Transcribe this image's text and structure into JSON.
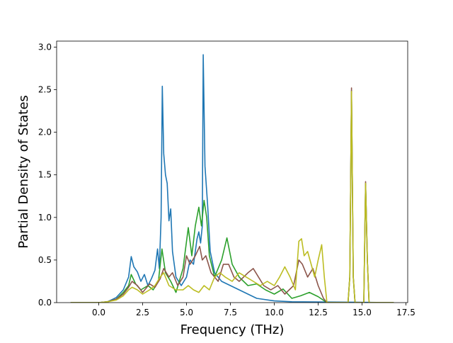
{
  "chart_data": {
    "type": "line",
    "title": "",
    "xlabel": "Frequency (THz)",
    "ylabel": "Partial Density of States",
    "xlim": [
      -2.4,
      17.6
    ],
    "ylim": [
      0.0,
      3.07
    ],
    "xticks": [
      0.0,
      2.5,
      5.0,
      7.5,
      10.0,
      12.5,
      15.0,
      17.5
    ],
    "xtick_labels": [
      "0.0",
      "2.5",
      "5.0",
      "7.5",
      "10.0",
      "12.5",
      "15.0",
      "17.5"
    ],
    "yticks": [
      0.0,
      0.5,
      1.0,
      1.5,
      2.0,
      2.5,
      3.0
    ],
    "ytick_labels": [
      "0.0",
      "0.5",
      "1.0",
      "1.5",
      "2.0",
      "2.5",
      "3.0"
    ],
    "grid": false,
    "legend": "none",
    "series": [
      {
        "color": "#1f77b4",
        "points": [
          [
            -1.6,
            0
          ],
          [
            0,
            0
          ],
          [
            0.5,
            0.01
          ],
          [
            1.0,
            0.06
          ],
          [
            1.4,
            0.15
          ],
          [
            1.7,
            0.3
          ],
          [
            1.85,
            0.54
          ],
          [
            2.0,
            0.42
          ],
          [
            2.2,
            0.36
          ],
          [
            2.4,
            0.25
          ],
          [
            2.6,
            0.33
          ],
          [
            2.8,
            0.2
          ],
          [
            3.0,
            0.28
          ],
          [
            3.2,
            0.38
          ],
          [
            3.35,
            0.63
          ],
          [
            3.45,
            0.4
          ],
          [
            3.55,
            1.0
          ],
          [
            3.62,
            2.54
          ],
          [
            3.7,
            1.75
          ],
          [
            3.8,
            1.5
          ],
          [
            3.9,
            1.4
          ],
          [
            4.0,
            0.96
          ],
          [
            4.1,
            1.1
          ],
          [
            4.2,
            0.6
          ],
          [
            4.4,
            0.3
          ],
          [
            4.7,
            0.2
          ],
          [
            5.0,
            0.3
          ],
          [
            5.2,
            0.5
          ],
          [
            5.4,
            0.45
          ],
          [
            5.6,
            0.75
          ],
          [
            5.7,
            0.83
          ],
          [
            5.8,
            0.7
          ],
          [
            5.9,
            0.9
          ],
          [
            5.95,
            2.91
          ],
          [
            6.05,
            1.6
          ],
          [
            6.2,
            1.15
          ],
          [
            6.35,
            0.6
          ],
          [
            6.6,
            0.35
          ],
          [
            7.0,
            0.25
          ],
          [
            7.5,
            0.2
          ],
          [
            8.0,
            0.15
          ],
          [
            8.5,
            0.1
          ],
          [
            9.0,
            0.05
          ],
          [
            10.0,
            0.02
          ],
          [
            11.0,
            0.01
          ],
          [
            16.8,
            0
          ]
        ]
      },
      {
        "color": "#2ca02c",
        "points": [
          [
            -1.6,
            0
          ],
          [
            0,
            0
          ],
          [
            0.5,
            0.01
          ],
          [
            1.0,
            0.04
          ],
          [
            1.4,
            0.12
          ],
          [
            1.7,
            0.2
          ],
          [
            1.85,
            0.33
          ],
          [
            2.1,
            0.22
          ],
          [
            2.4,
            0.15
          ],
          [
            2.8,
            0.2
          ],
          [
            3.1,
            0.15
          ],
          [
            3.4,
            0.25
          ],
          [
            3.6,
            0.63
          ],
          [
            3.8,
            0.35
          ],
          [
            4.1,
            0.25
          ],
          [
            4.4,
            0.12
          ],
          [
            4.8,
            0.4
          ],
          [
            5.1,
            0.88
          ],
          [
            5.3,
            0.55
          ],
          [
            5.5,
            0.9
          ],
          [
            5.7,
            1.12
          ],
          [
            5.85,
            0.9
          ],
          [
            6.0,
            1.2
          ],
          [
            6.15,
            1.0
          ],
          [
            6.3,
            0.55
          ],
          [
            6.6,
            0.3
          ],
          [
            7.0,
            0.5
          ],
          [
            7.3,
            0.76
          ],
          [
            7.6,
            0.45
          ],
          [
            8.0,
            0.3
          ],
          [
            8.5,
            0.2
          ],
          [
            9.0,
            0.22
          ],
          [
            9.5,
            0.15
          ],
          [
            10.0,
            0.1
          ],
          [
            10.5,
            0.16
          ],
          [
            11.0,
            0.05
          ],
          [
            11.5,
            0.08
          ],
          [
            12.0,
            0.12
          ],
          [
            12.5,
            0.07
          ],
          [
            13.0,
            0.0
          ],
          [
            14.2,
            0.0
          ],
          [
            14.3,
            0.3
          ],
          [
            14.4,
            2.49
          ],
          [
            14.5,
            0.3
          ],
          [
            14.6,
            0.0
          ],
          [
            15.1,
            0.0
          ],
          [
            15.2,
            1.4
          ],
          [
            15.3,
            0.5
          ],
          [
            15.4,
            0.0
          ],
          [
            16.8,
            0
          ]
        ]
      },
      {
        "color": "#8c564b",
        "points": [
          [
            -1.6,
            0
          ],
          [
            0,
            0
          ],
          [
            0.5,
            0.01
          ],
          [
            1.0,
            0.04
          ],
          [
            1.4,
            0.1
          ],
          [
            1.7,
            0.18
          ],
          [
            1.9,
            0.25
          ],
          [
            2.2,
            0.2
          ],
          [
            2.5,
            0.12
          ],
          [
            2.9,
            0.22
          ],
          [
            3.2,
            0.18
          ],
          [
            3.5,
            0.28
          ],
          [
            3.7,
            0.4
          ],
          [
            4.0,
            0.3
          ],
          [
            4.2,
            0.35
          ],
          [
            4.5,
            0.2
          ],
          [
            4.8,
            0.3
          ],
          [
            5.0,
            0.55
          ],
          [
            5.2,
            0.45
          ],
          [
            5.5,
            0.55
          ],
          [
            5.75,
            0.66
          ],
          [
            5.9,
            0.5
          ],
          [
            6.1,
            0.55
          ],
          [
            6.4,
            0.35
          ],
          [
            6.8,
            0.25
          ],
          [
            7.1,
            0.45
          ],
          [
            7.4,
            0.45
          ],
          [
            7.7,
            0.3
          ],
          [
            8.0,
            0.25
          ],
          [
            8.5,
            0.35
          ],
          [
            8.8,
            0.4
          ],
          [
            9.1,
            0.3
          ],
          [
            9.4,
            0.2
          ],
          [
            9.8,
            0.15
          ],
          [
            10.2,
            0.2
          ],
          [
            10.6,
            0.1
          ],
          [
            11.1,
            0.2
          ],
          [
            11.4,
            0.5
          ],
          [
            11.6,
            0.45
          ],
          [
            11.9,
            0.3
          ],
          [
            12.2,
            0.4
          ],
          [
            12.5,
            0.2
          ],
          [
            12.8,
            0.05
          ],
          [
            13.0,
            0.0
          ],
          [
            14.2,
            0.0
          ],
          [
            14.3,
            0.3
          ],
          [
            14.4,
            2.52
          ],
          [
            14.5,
            0.3
          ],
          [
            14.6,
            0.0
          ],
          [
            15.1,
            0.0
          ],
          [
            15.2,
            1.42
          ],
          [
            15.3,
            0.5
          ],
          [
            15.4,
            0.0
          ],
          [
            16.8,
            0
          ]
        ]
      },
      {
        "color": "#bcbd22",
        "points": [
          [
            -1.6,
            0
          ],
          [
            0,
            0
          ],
          [
            0.5,
            0.01
          ],
          [
            1.0,
            0.03
          ],
          [
            1.4,
            0.08
          ],
          [
            1.7,
            0.15
          ],
          [
            1.9,
            0.18
          ],
          [
            2.2,
            0.15
          ],
          [
            2.5,
            0.1
          ],
          [
            2.9,
            0.15
          ],
          [
            3.2,
            0.2
          ],
          [
            3.5,
            0.3
          ],
          [
            3.7,
            0.35
          ],
          [
            4.0,
            0.2
          ],
          [
            4.4,
            0.15
          ],
          [
            4.8,
            0.15
          ],
          [
            5.1,
            0.2
          ],
          [
            5.4,
            0.15
          ],
          [
            5.7,
            0.12
          ],
          [
            6.0,
            0.2
          ],
          [
            6.3,
            0.15
          ],
          [
            6.6,
            0.3
          ],
          [
            6.9,
            0.35
          ],
          [
            7.2,
            0.3
          ],
          [
            7.6,
            0.25
          ],
          [
            8.0,
            0.35
          ],
          [
            8.4,
            0.3
          ],
          [
            8.8,
            0.25
          ],
          [
            9.2,
            0.2
          ],
          [
            9.6,
            0.25
          ],
          [
            10.0,
            0.2
          ],
          [
            10.3,
            0.3
          ],
          [
            10.6,
            0.42
          ],
          [
            10.9,
            0.3
          ],
          [
            11.2,
            0.15
          ],
          [
            11.4,
            0.72
          ],
          [
            11.55,
            0.75
          ],
          [
            11.7,
            0.55
          ],
          [
            11.9,
            0.6
          ],
          [
            12.1,
            0.45
          ],
          [
            12.3,
            0.3
          ],
          [
            12.5,
            0.5
          ],
          [
            12.7,
            0.68
          ],
          [
            12.85,
            0.3
          ],
          [
            13.0,
            0.0
          ],
          [
            14.2,
            0.0
          ],
          [
            14.3,
            0.3
          ],
          [
            14.4,
            2.48
          ],
          [
            14.5,
            0.3
          ],
          [
            14.6,
            0.0
          ],
          [
            15.1,
            0.0
          ],
          [
            15.2,
            1.4
          ],
          [
            15.3,
            0.5
          ],
          [
            15.4,
            0.0
          ],
          [
            16.8,
            0
          ]
        ]
      }
    ]
  }
}
